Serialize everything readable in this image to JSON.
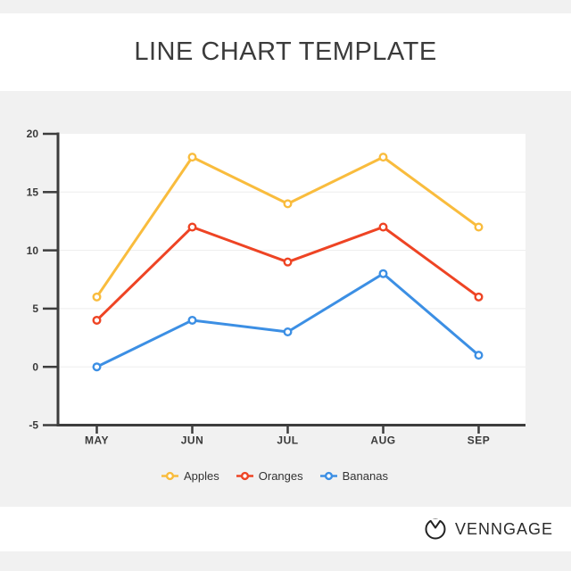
{
  "header": {
    "title": "LINE CHART TEMPLATE"
  },
  "chart_data": {
    "type": "line",
    "categories": [
      "MAY",
      "JUN",
      "JUL",
      "AUG",
      "SEP"
    ],
    "series": [
      {
        "name": "Apples",
        "color": "#F9BC3D",
        "values": [
          6,
          18,
          14,
          18,
          12
        ]
      },
      {
        "name": "Oranges",
        "color": "#EE4424",
        "values": [
          4,
          12,
          9,
          12,
          6
        ]
      },
      {
        "name": "Bananas",
        "color": "#3C8FE4",
        "values": [
          0,
          4,
          3,
          8,
          1
        ]
      }
    ],
    "ylim": [
      -5,
      20
    ],
    "yticks": [
      -5,
      0,
      5,
      10,
      15,
      20
    ],
    "grid": true,
    "legend_position": "bottom",
    "marker": "open-circle"
  },
  "footer": {
    "brand": "VENNGAGE"
  },
  "theme": {
    "background": "#f1f1f1",
    "panel": "#ffffff",
    "axis": "#3d3d3d",
    "grid": "#ededed",
    "label": "#3a3a3a",
    "legend_text": "#333333",
    "title_color": "#3b3b3b",
    "brand_color": "#2b2b2b"
  }
}
